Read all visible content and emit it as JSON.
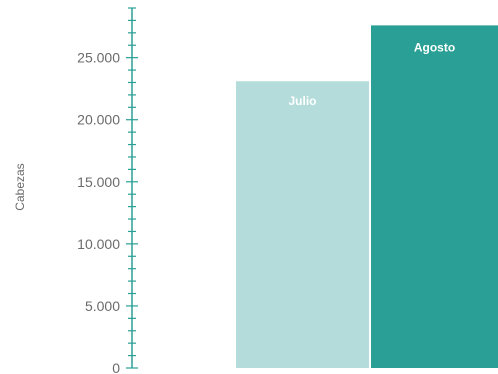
{
  "chart_data": {
    "type": "bar",
    "categories": [
      "Julio",
      "Agosto"
    ],
    "values": [
      23100,
      27600
    ],
    "colors": [
      "#b3dcdb",
      "#2a9f95"
    ],
    "xlabel": "",
    "ylabel": "Cabezas",
    "ylim": [
      0,
      29000
    ],
    "yticks": [
      0,
      5000,
      10000,
      15000,
      20000,
      25000
    ],
    "ytick_labels": [
      "0",
      "5.000",
      "10.000",
      "15.000",
      "20.000",
      "25.000"
    ],
    "axis_color": "#2a9f95",
    "grid": false,
    "legend": "none"
  }
}
